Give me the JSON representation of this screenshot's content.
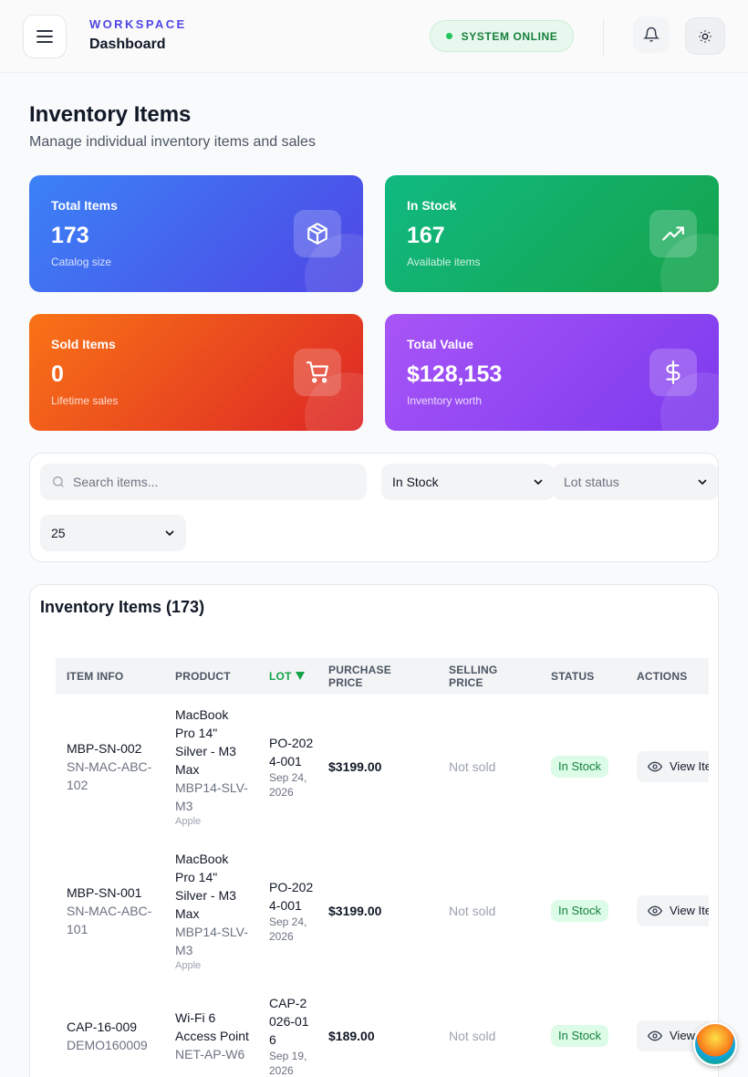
{
  "header": {
    "eyebrow": "WORKSPACE",
    "title": "Dashboard",
    "status": "SYSTEM ONLINE"
  },
  "page": {
    "title": "Inventory Items",
    "subtitle": "Manage individual inventory items and sales"
  },
  "stats": [
    {
      "label": "Total Items",
      "value": "173",
      "note": "Catalog size"
    },
    {
      "label": "In Stock",
      "value": "167",
      "note": "Available items"
    },
    {
      "label": "Sold Items",
      "value": "0",
      "note": "Lifetime sales"
    },
    {
      "label": "Total Value",
      "value": "$128,153",
      "note": "Inventory worth"
    }
  ],
  "filters": {
    "search_placeholder": "Search items...",
    "stock_status": "In Stock",
    "lot_status": "Lot status",
    "page_size": "25"
  },
  "table": {
    "title": "Inventory Items (173)",
    "columns": [
      "ITEM INFO",
      "PRODUCT",
      "LOT",
      "PURCHASE PRICE",
      "SELLING PRICE",
      "STATUS",
      "ACTIONS"
    ],
    "rows": [
      {
        "item_id": "MBP-SN-002",
        "serial": "SN-MAC-ABC-102",
        "product": "MacBook Pro 14\" Silver - M3 Max",
        "sku": "MBP14-SLV-M3",
        "brand": "Apple",
        "lot": "PO-2024-001",
        "lot_date": "Sep 24, 2026",
        "purchase_price": "$3199.00",
        "selling_price": "Not sold",
        "status": "In Stock",
        "action": "View Item"
      },
      {
        "item_id": "MBP-SN-001",
        "serial": "SN-MAC-ABC-101",
        "product": "MacBook Pro 14\" Silver - M3 Max",
        "sku": "MBP14-SLV-M3",
        "brand": "Apple",
        "lot": "PO-2024-001",
        "lot_date": "Sep 24, 2026",
        "purchase_price": "$3199.00",
        "selling_price": "Not sold",
        "status": "In Stock",
        "action": "View Item"
      },
      {
        "item_id": "CAP-16-009",
        "serial": "DEMO160009",
        "product": "Wi-Fi 6 Access Point",
        "sku": "NET-AP-W6",
        "lot": "CAP-2026-016",
        "lot_date": "Sep 19, 2026",
        "purchase_price": "$189.00",
        "selling_price": "Not sold",
        "status": "In Stock",
        "action": "View Item"
      }
    ]
  }
}
